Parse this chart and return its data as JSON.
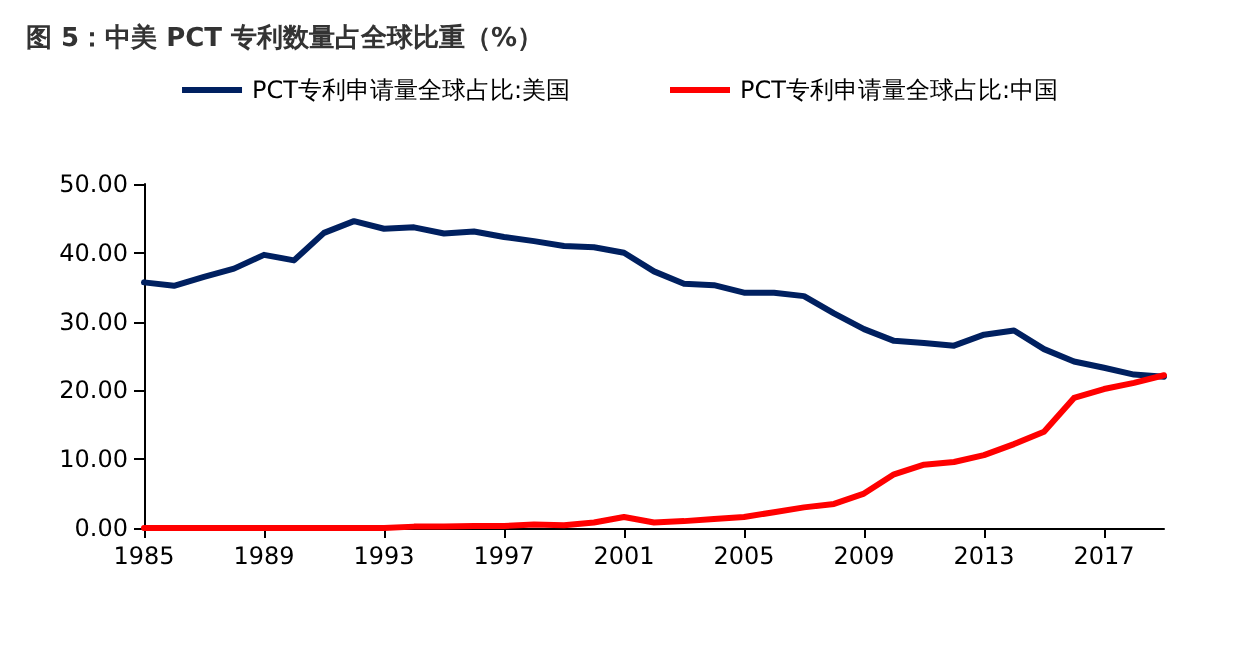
{
  "chart_data": {
    "type": "line",
    "title": "图 5：中美 PCT 专利数量占全球比重（%）",
    "categories": [
      "1985",
      null,
      null,
      null,
      "1989",
      null,
      null,
      null,
      "1993",
      null,
      null,
      null,
      "1997",
      null,
      null,
      null,
      "2001",
      null,
      null,
      null,
      "2005",
      null,
      null,
      null,
      "2009",
      null,
      null,
      null,
      "2013",
      null,
      null,
      null,
      "2017",
      null,
      null
    ],
    "series": [
      {
        "name": "PCT专利申请量全球占比:美国",
        "color": "#002060",
        "values": [
          35.7,
          35.2,
          36.5,
          37.7,
          39.7,
          38.9,
          42.9,
          44.6,
          43.5,
          43.7,
          42.8,
          43.1,
          42.3,
          41.7,
          41.0,
          40.8,
          40.0,
          37.3,
          35.5,
          35.3,
          34.2,
          34.2,
          33.7,
          31.2,
          28.9,
          27.2,
          26.9,
          26.5,
          28.1,
          28.7,
          26.0,
          24.2,
          23.3,
          22.3,
          22.0
        ]
      },
      {
        "name": "PCT专利申请量全球占比:中国",
        "color": "#ff0000",
        "values": [
          0,
          0,
          0,
          0,
          0,
          0,
          0,
          0,
          0,
          0.2,
          0.2,
          0.3,
          0.3,
          0.5,
          0.4,
          0.8,
          1.6,
          0.8,
          1.0,
          1.3,
          1.6,
          2.3,
          3.0,
          3.5,
          5.0,
          7.8,
          9.2,
          9.6,
          10.6,
          12.2,
          14.0,
          18.9,
          20.2,
          21.1,
          22.2
        ]
      }
    ],
    "ylim": [
      0,
      50
    ],
    "yticks": [
      {
        "value": 0,
        "label": "0.00"
      },
      {
        "value": 10,
        "label": "10.00"
      },
      {
        "value": 20,
        "label": "20.00"
      },
      {
        "value": 30,
        "label": "30.00"
      },
      {
        "value": 40,
        "label": "40.00"
      },
      {
        "value": 50,
        "label": "50.00"
      }
    ],
    "legend": "top",
    "grid": false,
    "marker": "none",
    "line_style": "solid"
  }
}
